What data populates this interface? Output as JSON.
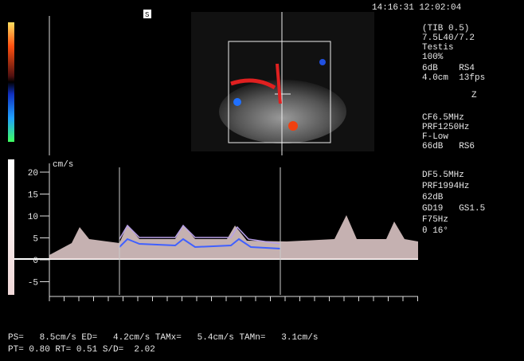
{
  "header": {
    "timestamp": "14:16:31 12:02:04",
    "marker": "S"
  },
  "settings": [
    "(TIB 0.5)",
    "7.5L40/7.2",
    "Testis",
    "100%",
    "6dB    RS4",
    "4.0cm  13fps",
    "Z",
    "CF6.5MHz",
    "PRF1250Hz",
    "F-Low",
    "66dB   RS6",
    "DF5.5MHz",
    "PRF1994Hz",
    "62dB",
    "GD19   GS1.5",
    "F75Hz",
    "θ 16°"
  ],
  "doppler": {
    "unit": "cm/s",
    "ticks": [
      "20",
      "15",
      "10",
      "5",
      "0",
      "-5"
    ]
  },
  "measurements": [
    "PS=   8.5cm/s ED=   4.2cm/s TAMx=   5.4cm/s TAMn=   3.1cm/s",
    "PT= 0.80 RT= 0.51 S/D=  2.02"
  ]
}
